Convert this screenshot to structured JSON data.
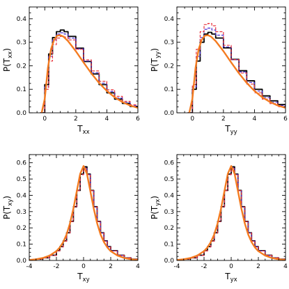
{
  "chart_data": [
    {
      "type": "line",
      "panel": "top-left",
      "xlabel_main": "T",
      "xlabel_sub": "xx",
      "ylabel_main": "P(T",
      "ylabel_sub": "xx",
      "ylabel_close": ")",
      "xlim": [
        -1,
        6
      ],
      "ylim": [
        0,
        0.45
      ],
      "xticks": [
        0,
        2,
        4,
        6
      ],
      "yticks": [
        0.0,
        0.1,
        0.2,
        0.3,
        0.4
      ],
      "colors": [
        "#000000",
        "#4b2fd6",
        "#e8323c",
        "#f47b20"
      ],
      "series": [
        {
          "style": "step-solid",
          "color": "#000000",
          "x": [
            -0.3,
            0,
            0.25,
            0.5,
            0.75,
            1.0,
            1.25,
            1.5,
            2,
            2.5,
            3,
            3.5,
            4,
            4.5,
            5,
            5.5,
            6
          ],
          "y": [
            0.0,
            0.12,
            0.25,
            0.32,
            0.345,
            0.352,
            0.345,
            0.325,
            0.275,
            0.218,
            0.165,
            0.12,
            0.085,
            0.058,
            0.04,
            0.027,
            0.018
          ]
        },
        {
          "style": "step-dashed",
          "color": "#4b2fd6",
          "x": [
            -0.3,
            0,
            0.25,
            0.5,
            0.75,
            1.0,
            1.25,
            1.5,
            2,
            2.5,
            3,
            3.5,
            4,
            4.5,
            5,
            5.5,
            6
          ],
          "y": [
            0.0,
            0.11,
            0.24,
            0.31,
            0.335,
            0.34,
            0.335,
            0.318,
            0.272,
            0.22,
            0.17,
            0.126,
            0.091,
            0.063,
            0.044,
            0.03,
            0.02
          ]
        },
        {
          "style": "step-dashed",
          "color": "#e8323c",
          "x": [
            -0.3,
            0,
            0.25,
            0.5,
            0.75,
            1.0,
            1.25,
            1.5,
            2,
            2.5,
            3,
            3.5,
            4,
            4.5,
            5,
            5.5,
            6
          ],
          "y": [
            0.0,
            0.1,
            0.22,
            0.29,
            0.318,
            0.325,
            0.322,
            0.31,
            0.27,
            0.225,
            0.178,
            0.134,
            0.098,
            0.07,
            0.049,
            0.034,
            0.023
          ]
        },
        {
          "style": "smooth",
          "color": "#f47b20",
          "x": [
            -0.2,
            0,
            0.2,
            0.4,
            0.6,
            0.8,
            1.0,
            1.2,
            1.5,
            2,
            2.5,
            3,
            3.5,
            4,
            4.5,
            5,
            5.5,
            6
          ],
          "y": [
            0.0,
            0.06,
            0.19,
            0.27,
            0.31,
            0.328,
            0.33,
            0.324,
            0.305,
            0.262,
            0.214,
            0.168,
            0.127,
            0.093,
            0.066,
            0.046,
            0.031,
            0.021
          ]
        }
      ]
    },
    {
      "type": "line",
      "panel": "top-right",
      "xlabel_main": "T",
      "xlabel_sub": "yy",
      "ylabel_main": "P(T",
      "ylabel_sub": "yy",
      "ylabel_close": ")",
      "xlim": [
        -1,
        6
      ],
      "ylim": [
        0,
        0.45
      ],
      "xticks": [
        0,
        2,
        4,
        6
      ],
      "yticks": [
        0.0,
        0.1,
        0.2,
        0.3,
        0.4
      ],
      "colors": [
        "#000000",
        "#4b2fd6",
        "#e8323c",
        "#f47b20"
      ],
      "series": [
        {
          "style": "step-solid",
          "color": "#000000",
          "x": [
            -0.3,
            0,
            0.25,
            0.5,
            0.75,
            1.0,
            1.25,
            1.5,
            2,
            2.5,
            3,
            3.5,
            4,
            4.5,
            5,
            5.5,
            6
          ],
          "y": [
            0.0,
            0.1,
            0.22,
            0.3,
            0.335,
            0.342,
            0.335,
            0.318,
            0.276,
            0.227,
            0.179,
            0.136,
            0.1,
            0.072,
            0.051,
            0.035,
            0.024
          ]
        },
        {
          "style": "step-dashed",
          "color": "#4b2fd6",
          "x": [
            -0.3,
            0,
            0.25,
            0.5,
            0.75,
            1.0,
            1.25,
            1.5,
            2,
            2.5,
            3,
            3.5,
            4,
            4.5,
            5,
            5.5,
            6
          ],
          "y": [
            0.0,
            0.11,
            0.24,
            0.32,
            0.355,
            0.36,
            0.352,
            0.33,
            0.28,
            0.226,
            0.174,
            0.129,
            0.093,
            0.065,
            0.045,
            0.031,
            0.021
          ]
        },
        {
          "style": "step-dashed",
          "color": "#e8323c",
          "x": [
            -0.3,
            0,
            0.25,
            0.5,
            0.75,
            1.0,
            1.25,
            1.5,
            2,
            2.5,
            3,
            3.5,
            4,
            4.5,
            5,
            5.5,
            6
          ],
          "y": [
            0.0,
            0.12,
            0.27,
            0.345,
            0.375,
            0.38,
            0.37,
            0.345,
            0.287,
            0.226,
            0.169,
            0.122,
            0.085,
            0.058,
            0.039,
            0.026,
            0.017
          ]
        },
        {
          "style": "smooth",
          "color": "#f47b20",
          "x": [
            -0.2,
            0,
            0.2,
            0.4,
            0.6,
            0.8,
            1.0,
            1.2,
            1.5,
            2,
            2.5,
            3,
            3.5,
            4,
            4.5,
            5,
            5.5,
            6
          ],
          "y": [
            0.0,
            0.06,
            0.19,
            0.27,
            0.31,
            0.328,
            0.33,
            0.324,
            0.305,
            0.262,
            0.214,
            0.168,
            0.127,
            0.093,
            0.066,
            0.046,
            0.031,
            0.021
          ]
        }
      ]
    },
    {
      "type": "line",
      "panel": "bottom-left",
      "xlabel_main": "T",
      "xlabel_sub": "xy",
      "ylabel_main": "P(T",
      "ylabel_sub": "xy",
      "ylabel_close": ")",
      "xlim": [
        -4,
        4
      ],
      "ylim": [
        0,
        0.65
      ],
      "xticks": [
        -4,
        -2,
        0,
        2,
        4
      ],
      "yticks": [
        0.0,
        0.1,
        0.2,
        0.3,
        0.4,
        0.5,
        0.6
      ],
      "colors": [
        "#000000",
        "#4b2fd6",
        "#e8323c",
        "#f47b20"
      ],
      "series": [
        {
          "style": "step-solid",
          "color": "#000000",
          "x": [
            -4,
            -3.5,
            -3,
            -2.5,
            -2,
            -1.75,
            -1.5,
            -1.25,
            -1,
            -0.75,
            -0.5,
            -0.25,
            0,
            0.25,
            0.5,
            0.75,
            1,
            1.25,
            1.5,
            1.75,
            2,
            2.5,
            3,
            3.5,
            4
          ],
          "y": [
            0.004,
            0.008,
            0.016,
            0.032,
            0.06,
            0.085,
            0.12,
            0.17,
            0.24,
            0.33,
            0.43,
            0.53,
            0.575,
            0.53,
            0.43,
            0.33,
            0.24,
            0.17,
            0.12,
            0.085,
            0.06,
            0.032,
            0.016,
            0.008,
            0.004
          ]
        },
        {
          "style": "step-dashed",
          "color": "#4b2fd6",
          "x": [
            -4,
            -3.5,
            -3,
            -2.5,
            -2,
            -1.75,
            -1.5,
            -1.25,
            -1,
            -0.75,
            -0.5,
            -0.25,
            0,
            0.25,
            0.5,
            0.75,
            1,
            1.25,
            1.5,
            1.75,
            2,
            2.5,
            3,
            3.5,
            4
          ],
          "y": [
            0.004,
            0.008,
            0.016,
            0.031,
            0.058,
            0.083,
            0.118,
            0.168,
            0.238,
            0.328,
            0.428,
            0.527,
            0.57,
            0.527,
            0.428,
            0.328,
            0.238,
            0.168,
            0.118,
            0.083,
            0.058,
            0.031,
            0.016,
            0.008,
            0.004
          ]
        },
        {
          "style": "step-dashed",
          "color": "#e8323c",
          "x": [
            -4,
            -3.5,
            -3,
            -2.5,
            -2,
            -1.75,
            -1.5,
            -1.25,
            -1,
            -0.75,
            -0.5,
            -0.25,
            0,
            0.25,
            0.5,
            0.75,
            1,
            1.25,
            1.5,
            1.75,
            2,
            2.5,
            3,
            3.5,
            4
          ],
          "y": [
            0.004,
            0.008,
            0.016,
            0.031,
            0.058,
            0.083,
            0.118,
            0.168,
            0.238,
            0.328,
            0.428,
            0.527,
            0.565,
            0.527,
            0.428,
            0.328,
            0.238,
            0.168,
            0.118,
            0.083,
            0.058,
            0.031,
            0.016,
            0.008,
            0.004
          ]
        },
        {
          "style": "smooth",
          "color": "#f47b20",
          "x": [
            -4,
            -3.5,
            -3,
            -2.5,
            -2,
            -1.75,
            -1.5,
            -1.25,
            -1,
            -0.75,
            -0.5,
            -0.25,
            0,
            0.25,
            0.5,
            0.75,
            1,
            1.25,
            1.5,
            1.75,
            2,
            2.5,
            3,
            3.5,
            4
          ],
          "y": [
            0.003,
            0.007,
            0.015,
            0.03,
            0.057,
            0.08,
            0.113,
            0.16,
            0.228,
            0.318,
            0.425,
            0.532,
            0.58,
            0.532,
            0.425,
            0.318,
            0.228,
            0.16,
            0.113,
            0.08,
            0.057,
            0.03,
            0.015,
            0.007,
            0.003
          ]
        }
      ]
    },
    {
      "type": "line",
      "panel": "bottom-right",
      "xlabel_main": "T",
      "xlabel_sub": "yx",
      "ylabel_main": "P(T",
      "ylabel_sub": "yx",
      "ylabel_close": ")",
      "xlim": [
        -4,
        4
      ],
      "ylim": [
        0,
        0.65
      ],
      "xticks": [
        -4,
        -2,
        0,
        2,
        4
      ],
      "yticks": [
        0.0,
        0.1,
        0.2,
        0.3,
        0.4,
        0.5,
        0.6
      ],
      "colors": [
        "#000000",
        "#4b2fd6",
        "#e8323c",
        "#f47b20"
      ],
      "series": [
        {
          "style": "step-solid",
          "color": "#000000",
          "x": [
            -4,
            -3.5,
            -3,
            -2.5,
            -2,
            -1.75,
            -1.5,
            -1.25,
            -1,
            -0.75,
            -0.5,
            -0.25,
            0,
            0.25,
            0.5,
            0.75,
            1,
            1.25,
            1.5,
            1.75,
            2,
            2.5,
            3,
            3.5,
            4
          ],
          "y": [
            0.004,
            0.008,
            0.016,
            0.032,
            0.06,
            0.085,
            0.12,
            0.17,
            0.24,
            0.33,
            0.43,
            0.53,
            0.575,
            0.53,
            0.43,
            0.33,
            0.24,
            0.17,
            0.12,
            0.085,
            0.06,
            0.032,
            0.016,
            0.008,
            0.004
          ]
        },
        {
          "style": "step-dashed",
          "color": "#4b2fd6",
          "x": [
            -4,
            -3.5,
            -3,
            -2.5,
            -2,
            -1.75,
            -1.5,
            -1.25,
            -1,
            -0.75,
            -0.5,
            -0.25,
            0,
            0.25,
            0.5,
            0.75,
            1,
            1.25,
            1.5,
            1.75,
            2,
            2.5,
            3,
            3.5,
            4
          ],
          "y": [
            0.004,
            0.008,
            0.016,
            0.031,
            0.058,
            0.083,
            0.118,
            0.168,
            0.238,
            0.328,
            0.428,
            0.527,
            0.57,
            0.527,
            0.428,
            0.328,
            0.238,
            0.168,
            0.118,
            0.083,
            0.058,
            0.031,
            0.016,
            0.008,
            0.004
          ]
        },
        {
          "style": "step-dashed",
          "color": "#e8323c",
          "x": [
            -4,
            -3.5,
            -3,
            -2.5,
            -2,
            -1.75,
            -1.5,
            -1.25,
            -1,
            -0.75,
            -0.5,
            -0.25,
            0,
            0.25,
            0.5,
            0.75,
            1,
            1.25,
            1.5,
            1.75,
            2,
            2.5,
            3,
            3.5,
            4
          ],
          "y": [
            0.004,
            0.008,
            0.016,
            0.031,
            0.058,
            0.083,
            0.118,
            0.168,
            0.238,
            0.328,
            0.428,
            0.527,
            0.565,
            0.527,
            0.428,
            0.328,
            0.238,
            0.168,
            0.118,
            0.083,
            0.058,
            0.031,
            0.016,
            0.008,
            0.004
          ]
        },
        {
          "style": "smooth",
          "color": "#f47b20",
          "x": [
            -4,
            -3.5,
            -3,
            -2.5,
            -2,
            -1.75,
            -1.5,
            -1.25,
            -1,
            -0.75,
            -0.5,
            -0.25,
            0,
            0.25,
            0.5,
            0.75,
            1,
            1.25,
            1.5,
            1.75,
            2,
            2.5,
            3,
            3.5,
            4
          ],
          "y": [
            0.003,
            0.007,
            0.015,
            0.03,
            0.057,
            0.08,
            0.113,
            0.16,
            0.228,
            0.318,
            0.425,
            0.532,
            0.58,
            0.532,
            0.425,
            0.318,
            0.228,
            0.16,
            0.113,
            0.08,
            0.057,
            0.03,
            0.015,
            0.007,
            0.003
          ]
        }
      ]
    }
  ]
}
